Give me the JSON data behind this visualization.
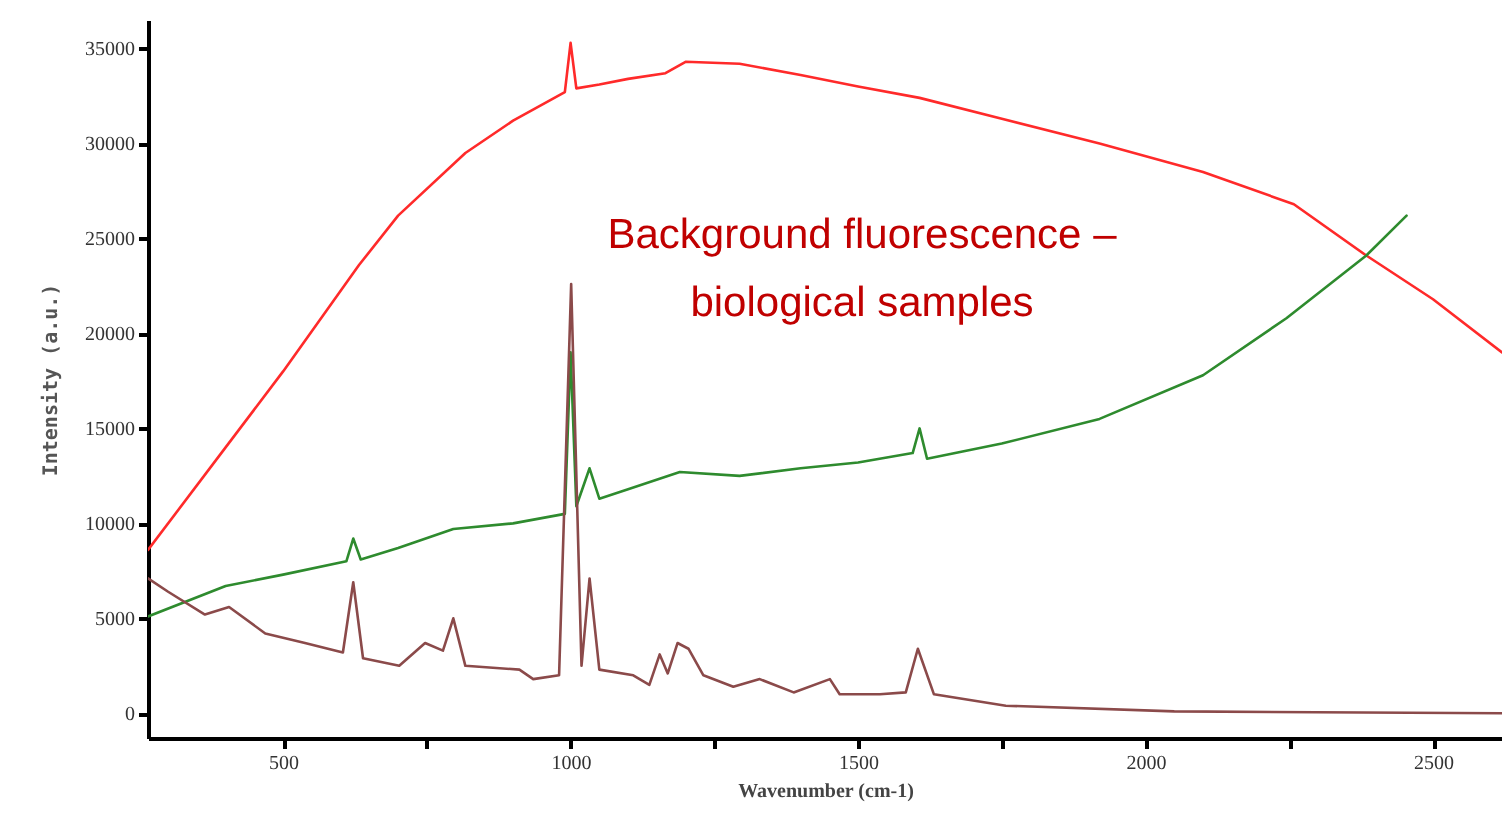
{
  "chart_data": {
    "type": "line",
    "xlabel": "Wavenumber (cm-1)",
    "ylabel": "Intensity (a.u.)",
    "annotations": [
      "Background fluorescence – biological samples"
    ],
    "xlim": [
      265,
      2620
    ],
    "ylim": [
      -1300,
      36500
    ],
    "xticks": [
      500,
      {
        "value": 750,
        "label": null
      },
      1000,
      {
        "value": 1250,
        "label": null
      },
      1500,
      {
        "value": 1750,
        "label": null
      },
      2000,
      {
        "value": 2250,
        "label": null
      },
      2500
    ],
    "yticks": [
      0,
      5000,
      10000,
      15000,
      20000,
      25000,
      30000,
      35000
    ],
    "grid": false,
    "marker": "none",
    "line_style": "solid",
    "series": [
      {
        "color": "#ff2a2a",
        "x": [
          265,
          400,
          500,
          632,
          700,
          817,
          900,
          990,
          1000,
          1010,
          1050,
          1100,
          1165,
          1200,
          1294,
          1400,
          1500,
          1607,
          1750,
          1920,
          2100,
          2258,
          2384,
          2500,
          2620
        ],
        "values": [
          8600,
          14000,
          18000,
          23600,
          26200,
          29500,
          31200,
          32700,
          35300,
          32900,
          33100,
          33400,
          33700,
          34300,
          34200,
          33600,
          33000,
          32400,
          31300,
          30000,
          28500,
          26800,
          24100,
          21800,
          19000
        ]
      },
      {
        "color": "#2e8b2e",
        "x": [
          265,
          400,
          500,
          610,
          622,
          635,
          700,
          796,
          900,
          990,
          1000,
          1010,
          1033,
          1050,
          1100,
          1190,
          1294,
          1400,
          1500,
          1595,
          1607,
          1620,
          1750,
          1920,
          2100,
          2245,
          2384,
          2454
        ],
        "values": [
          5100,
          6700,
          7300,
          8000,
          9200,
          8100,
          8700,
          9700,
          10000,
          10500,
          19000,
          10900,
          12900,
          11300,
          11800,
          12700,
          12500,
          12900,
          13200,
          13700,
          15000,
          13400,
          14200,
          15500,
          17800,
          20800,
          24100,
          26200
        ]
      },
      {
        "color": "#8b4a4a",
        "x": [
          265,
          300,
          364,
          406,
          469,
          538,
          604,
          622,
          639,
          702,
          747,
          778,
          796,
          817,
          911,
          935,
          980,
          1001,
          1019,
          1033,
          1050,
          1109,
          1137,
          1155,
          1169,
          1186,
          1205,
          1231,
          1283,
          1329,
          1388,
          1451,
          1468,
          1538,
          1583,
          1604,
          1632,
          1757,
          2050,
          2620
        ],
        "values": [
          7100,
          6400,
          5200,
          5600,
          4200,
          3700,
          3200,
          6900,
          2900,
          2500,
          3700,
          3300,
          5000,
          2500,
          2300,
          1800,
          2000,
          22600,
          2500,
          7100,
          2300,
          2000,
          1500,
          3100,
          2100,
          3700,
          3400,
          2000,
          1400,
          1800,
          1100,
          1800,
          1000,
          1000,
          1100,
          3400,
          1000,
          400,
          100,
          0
        ]
      }
    ]
  }
}
